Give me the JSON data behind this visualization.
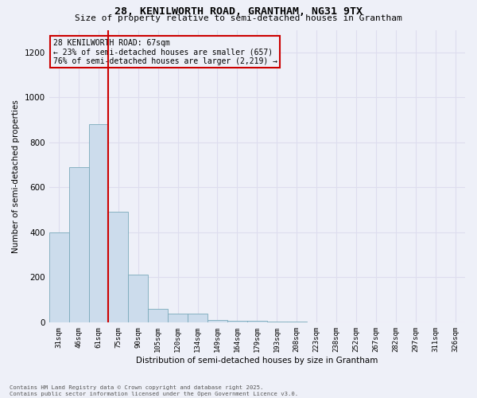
{
  "title_line1": "28, KENILWORTH ROAD, GRANTHAM, NG31 9TX",
  "title_line2": "Size of property relative to semi-detached houses in Grantham",
  "xlabel": "Distribution of semi-detached houses by size in Grantham",
  "ylabel": "Number of semi-detached properties",
  "categories": [
    "31sqm",
    "46sqm",
    "61sqm",
    "75sqm",
    "90sqm",
    "105sqm",
    "120sqm",
    "134sqm",
    "149sqm",
    "164sqm",
    "179sqm",
    "193sqm",
    "208sqm",
    "223sqm",
    "238sqm",
    "252sqm",
    "267sqm",
    "282sqm",
    "297sqm",
    "311sqm",
    "326sqm"
  ],
  "values": [
    400,
    690,
    880,
    490,
    210,
    60,
    40,
    40,
    10,
    5,
    5,
    2,
    2,
    1,
    1,
    1,
    1,
    1,
    1,
    1,
    1
  ],
  "bar_color": "#ccdcec",
  "bar_edge_color": "#7aaabb",
  "grid_color": "#ddddee",
  "annotation_box_color": "#cc0000",
  "property_line_color": "#cc0000",
  "property_line_x": 2.5,
  "annotation_title": "28 KENILWORTH ROAD: 67sqm",
  "annotation_line1": "← 23% of semi-detached houses are smaller (657)",
  "annotation_line2": "76% of semi-detached houses are larger (2,219) →",
  "footer_line1": "Contains HM Land Registry data © Crown copyright and database right 2025.",
  "footer_line2": "Contains public sector information licensed under the Open Government Licence v3.0.",
  "ylim": [
    0,
    1300
  ],
  "yticks": [
    0,
    200,
    400,
    600,
    800,
    1000,
    1200
  ],
  "background_color": "#eef0f8"
}
